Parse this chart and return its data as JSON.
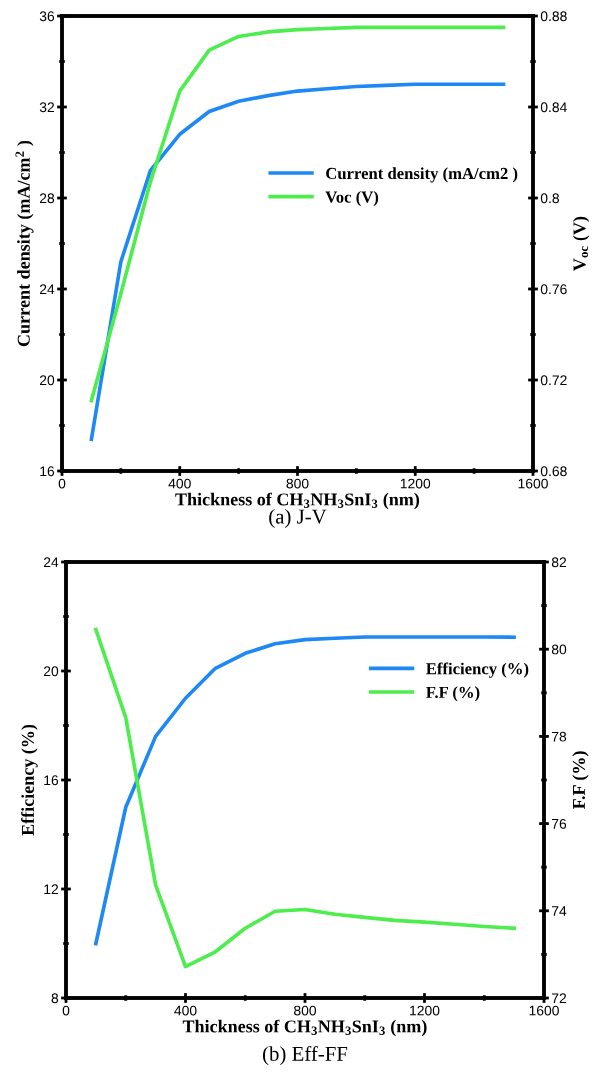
{
  "chart_data": [
    {
      "type": "line",
      "title": "(a) J-V",
      "xlabel": "Thickness of CH$_{3}$NH$_{3}$SnI$_{3}$ (nm)",
      "ylabel": "Current density (mA/cm$^{2}$ )",
      "y2label": "V$_{oc}$ (V)",
      "x": [
        100,
        200,
        300,
        400,
        500,
        600,
        700,
        800,
        900,
        1000,
        1100,
        1200,
        1300,
        1400,
        1500
      ],
      "series": [
        {
          "name": "Current density (mA/cm2 )",
          "color": "#1e88f5",
          "values": [
            17.4,
            25.2,
            29.2,
            30.8,
            31.8,
            32.25,
            32.5,
            32.7,
            32.8,
            32.9,
            32.95,
            33.0,
            33.0,
            33.0,
            33.0
          ]
        },
        {
          "name": "Voc (V)",
          "color": "#4ded4d",
          "axis": "y2",
          "values": [
            0.711,
            0.758,
            0.807,
            0.847,
            0.865,
            0.871,
            0.873,
            0.874,
            0.8745,
            0.875,
            0.875,
            0.875,
            0.875,
            0.875,
            0.875
          ]
        }
      ],
      "xlim": [
        0,
        1600
      ],
      "xticks": [
        0,
        {
          "value": 200,
          "label": null
        },
        400,
        {
          "value": 600,
          "label": null
        },
        800,
        {
          "value": 1000,
          "label": null
        },
        1200,
        {
          "value": 1400,
          "label": null
        },
        1600
      ],
      "ylim": [
        16,
        36
      ],
      "yticks": [
        16,
        {
          "value": 18,
          "label": null
        },
        20,
        {
          "value": 22,
          "label": null
        },
        24,
        {
          "value": 26,
          "label": null
        },
        28,
        {
          "value": 30,
          "label": null
        },
        32,
        {
          "value": 34,
          "label": null
        },
        36
      ],
      "y2lim": [
        0.68,
        0.88
      ],
      "y2ticks": [
        0.68,
        {
          "value": 0.7,
          "label": null
        },
        0.72,
        {
          "value": 0.74,
          "label": null
        },
        0.76,
        {
          "value": 0.78,
          "label": null
        },
        0.8,
        {
          "value": 0.82,
          "label": null
        },
        0.84,
        {
          "value": 0.86,
          "label": null
        },
        0.88
      ],
      "legend": "center right",
      "grid": false,
      "marker": "none",
      "line_style": "solid"
    },
    {
      "type": "line",
      "title": "(b) Eff-FF",
      "xlabel": "Thickness of CH$_{3}$NH$_{3}$SnI$_{3}$ (nm)",
      "ylabel": "Efficiency (%)",
      "y2label": "F.F (%)",
      "x": [
        100,
        200,
        300,
        400,
        500,
        600,
        700,
        800,
        900,
        1000,
        1100,
        1200,
        1300,
        1400,
        1500
      ],
      "series": [
        {
          "name": "Efficiency (%)",
          "color": "#1e88f5",
          "values": [
            10.0,
            15.0,
            17.6,
            19.0,
            20.1,
            20.65,
            21.0,
            21.15,
            21.2,
            21.25,
            21.25,
            21.25,
            21.25,
            21.25,
            21.24
          ]
        },
        {
          "name": "F.F (%)",
          "color": "#4ded4d",
          "axis": "y2",
          "values": [
            80.45,
            78.43,
            74.59,
            72.72,
            73.06,
            73.6,
            73.99,
            74.03,
            73.92,
            73.85,
            73.78,
            73.74,
            73.69,
            73.64,
            73.6
          ]
        }
      ],
      "xlim": [
        0,
        1600
      ],
      "xticks": [
        0,
        {
          "value": 200,
          "label": null
        },
        400,
        {
          "value": 600,
          "label": null
        },
        800,
        {
          "value": 1000,
          "label": null
        },
        1200,
        {
          "value": 1400,
          "label": null
        },
        1600
      ],
      "ylim": [
        8,
        24
      ],
      "yticks": [
        8,
        {
          "value": 10,
          "label": null
        },
        12,
        {
          "value": 14,
          "label": null
        },
        16,
        {
          "value": 18,
          "label": null
        },
        20,
        {
          "value": 22,
          "label": null
        },
        24
      ],
      "y2lim": [
        72,
        82
      ],
      "y2ticks": [
        72,
        {
          "value": 73,
          "label": null
        },
        74,
        {
          "value": 75,
          "label": null
        },
        76,
        {
          "value": 77,
          "label": null
        },
        78,
        {
          "value": 79,
          "label": null
        },
        80,
        {
          "value": 81,
          "label": null
        },
        82
      ],
      "legend": "center right",
      "grid": false,
      "marker": "none",
      "line_style": "solid"
    }
  ]
}
